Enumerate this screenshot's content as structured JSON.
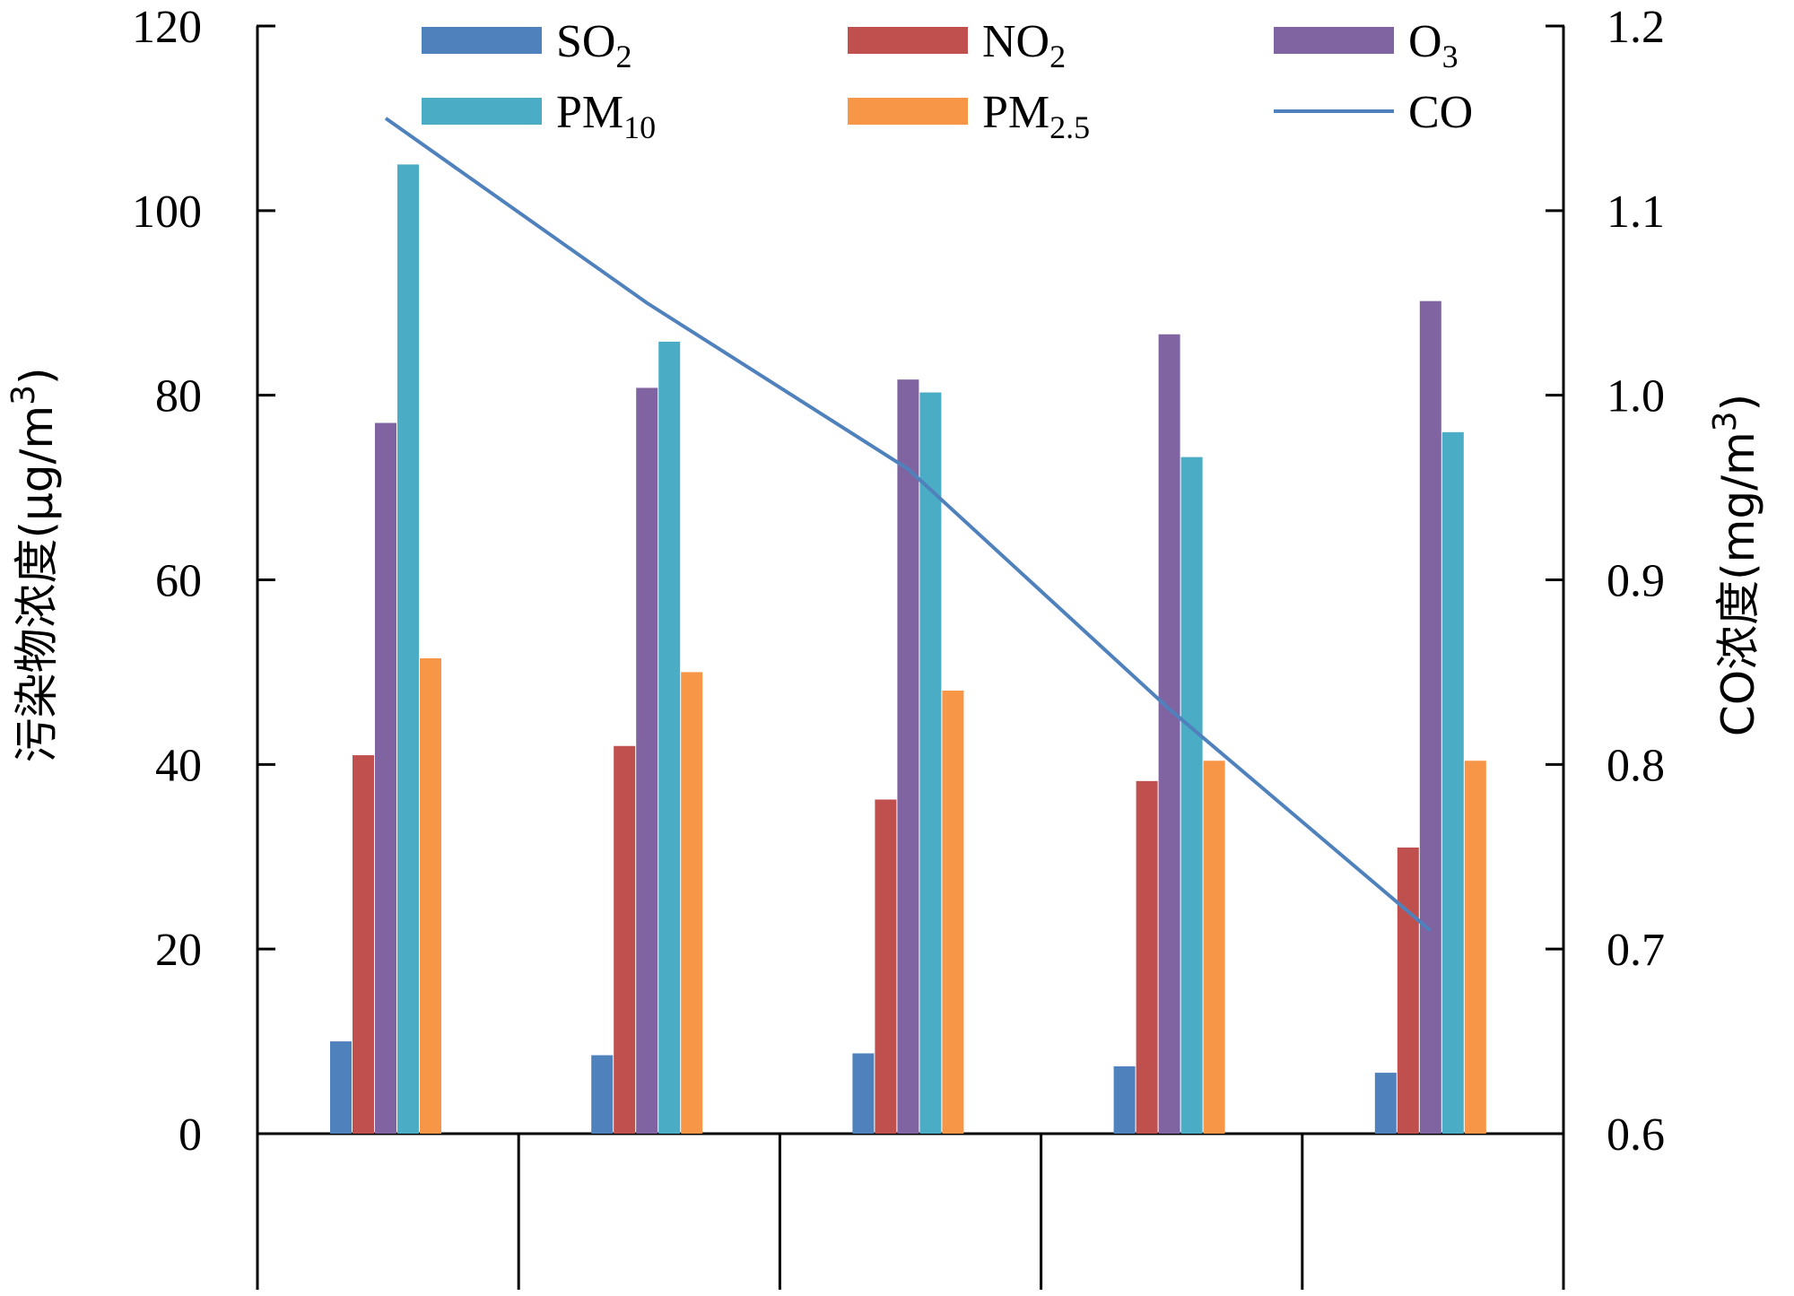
{
  "chart_data": {
    "type": "bar",
    "categories": [
      "",
      "",
      "",
      "",
      ""
    ],
    "series": [
      {
        "name": "SO2",
        "label_main": "SO",
        "label_sub": "2",
        "color": "#4F81BD",
        "values": [
          10,
          8.5,
          8.7,
          7.3,
          6.6
        ]
      },
      {
        "name": "NO2",
        "label_main": "NO",
        "label_sub": "2",
        "color": "#C0504D",
        "values": [
          41,
          42,
          36.2,
          38.2,
          31
        ]
      },
      {
        "name": "O3",
        "label_main": "O",
        "label_sub": "3",
        "color": "#8064A2",
        "values": [
          77,
          80.8,
          81.7,
          86.6,
          90.2
        ]
      },
      {
        "name": "PM10",
        "label_main": "PM",
        "label_sub": "10",
        "color": "#4BACC6",
        "values": [
          105,
          85.8,
          80.3,
          73.3,
          76
        ]
      },
      {
        "name": "PM2.5",
        "label_main": "PM",
        "label_sub": "2.5",
        "color": "#F79646",
        "values": [
          51.5,
          50,
          48,
          40.4,
          40.4
        ]
      }
    ],
    "line_series": {
      "name": "CO",
      "label_main": "CO",
      "color": "#4F81BD",
      "axis": "right",
      "values": [
        1.15,
        1.05,
        0.96,
        0.83,
        0.71
      ]
    },
    "ylabel": "污染物浓度(μg/m³)",
    "ylabel_main": "污染物浓度(μg/m",
    "ylabel_sup": "3",
    "ylabel_end": ")",
    "y2label_main": "CO浓度(mg/m",
    "y2label_sup": "3",
    "y2label_end": ")",
    "ylim": [
      0,
      120
    ],
    "y2lim": [
      0.6,
      1.2
    ],
    "yticks": [
      "0",
      "20",
      "40",
      "60",
      "80",
      "100",
      "120"
    ],
    "y2ticks": [
      "0.6",
      "0.7",
      "0.8",
      "0.9",
      "1.0",
      "1.1",
      "1.2"
    ],
    "legend_position": "top"
  }
}
